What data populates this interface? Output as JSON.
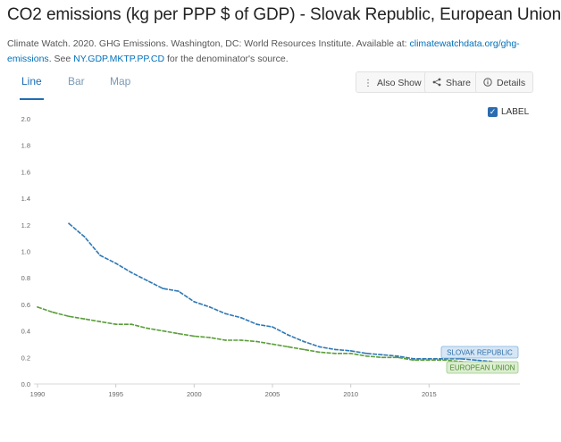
{
  "page": {
    "title": "CO2 emissions (kg per PPP $ of GDP) - Slovak Republic, European Union",
    "source_prefix": "Climate Watch. 2020. GHG Emissions. Washington, DC: World Resources Institute. Available at: ",
    "source_link": "climatewatchdata.org/ghg-emissions",
    "source_mid": ". See ",
    "source_link2": "NY.GDP.MKTP.PP.CD",
    "source_suffix": " for the denominator's source."
  },
  "tabs": [
    {
      "label": "Line",
      "active": true
    },
    {
      "label": "Bar",
      "active": false
    },
    {
      "label": "Map",
      "active": false
    }
  ],
  "toolbar": {
    "also_show": "Also Show",
    "share": "Share",
    "details": "Details"
  },
  "label_toggle": {
    "label": "LABEL",
    "checked": true
  },
  "chart_data": {
    "type": "line",
    "x_ticks": [
      1990,
      1995,
      2000,
      2005,
      2010,
      2015
    ],
    "y_ticks": [
      "0.0",
      "0.2",
      "0.4",
      "0.6",
      "0.8",
      "1.0",
      "1.2",
      "1.4",
      "1.6",
      "1.8",
      "2.0"
    ],
    "xlim": [
      1990,
      2020
    ],
    "ylim": [
      0,
      2.0
    ],
    "grid": false,
    "series": [
      {
        "name": "SLOVAK REPUBLIC",
        "color": "#2e78b5",
        "x": [
          1992,
          1993,
          1994,
          1995,
          1996,
          1997,
          1998,
          1999,
          2000,
          2001,
          2002,
          2003,
          2004,
          2005,
          2006,
          2007,
          2008,
          2009,
          2010,
          2011,
          2012,
          2013,
          2014,
          2015,
          2016,
          2017,
          2018,
          2019
        ],
        "values": [
          1.21,
          1.11,
          0.97,
          0.91,
          0.84,
          0.78,
          0.72,
          0.7,
          0.62,
          0.58,
          0.53,
          0.5,
          0.45,
          0.43,
          0.37,
          0.32,
          0.28,
          0.26,
          0.25,
          0.23,
          0.22,
          0.21,
          0.19,
          0.19,
          0.19,
          0.19,
          0.18,
          0.17
        ]
      },
      {
        "name": "EUROPEAN UNION",
        "color": "#5a9e3a",
        "x": [
          1990,
          1991,
          1992,
          1993,
          1994,
          1995,
          1996,
          1997,
          1998,
          1999,
          2000,
          2001,
          2002,
          2003,
          2004,
          2005,
          2006,
          2007,
          2008,
          2009,
          2010,
          2011,
          2012,
          2013,
          2014,
          2015,
          2016,
          2017,
          2018,
          2019
        ],
        "values": [
          0.58,
          0.54,
          0.51,
          0.49,
          0.47,
          0.45,
          0.45,
          0.42,
          0.4,
          0.38,
          0.36,
          0.35,
          0.33,
          0.33,
          0.32,
          0.3,
          0.28,
          0.26,
          0.24,
          0.23,
          0.23,
          0.21,
          0.2,
          0.2,
          0.18,
          0.18,
          0.18,
          0.17,
          0.16,
          0.15
        ]
      }
    ]
  }
}
